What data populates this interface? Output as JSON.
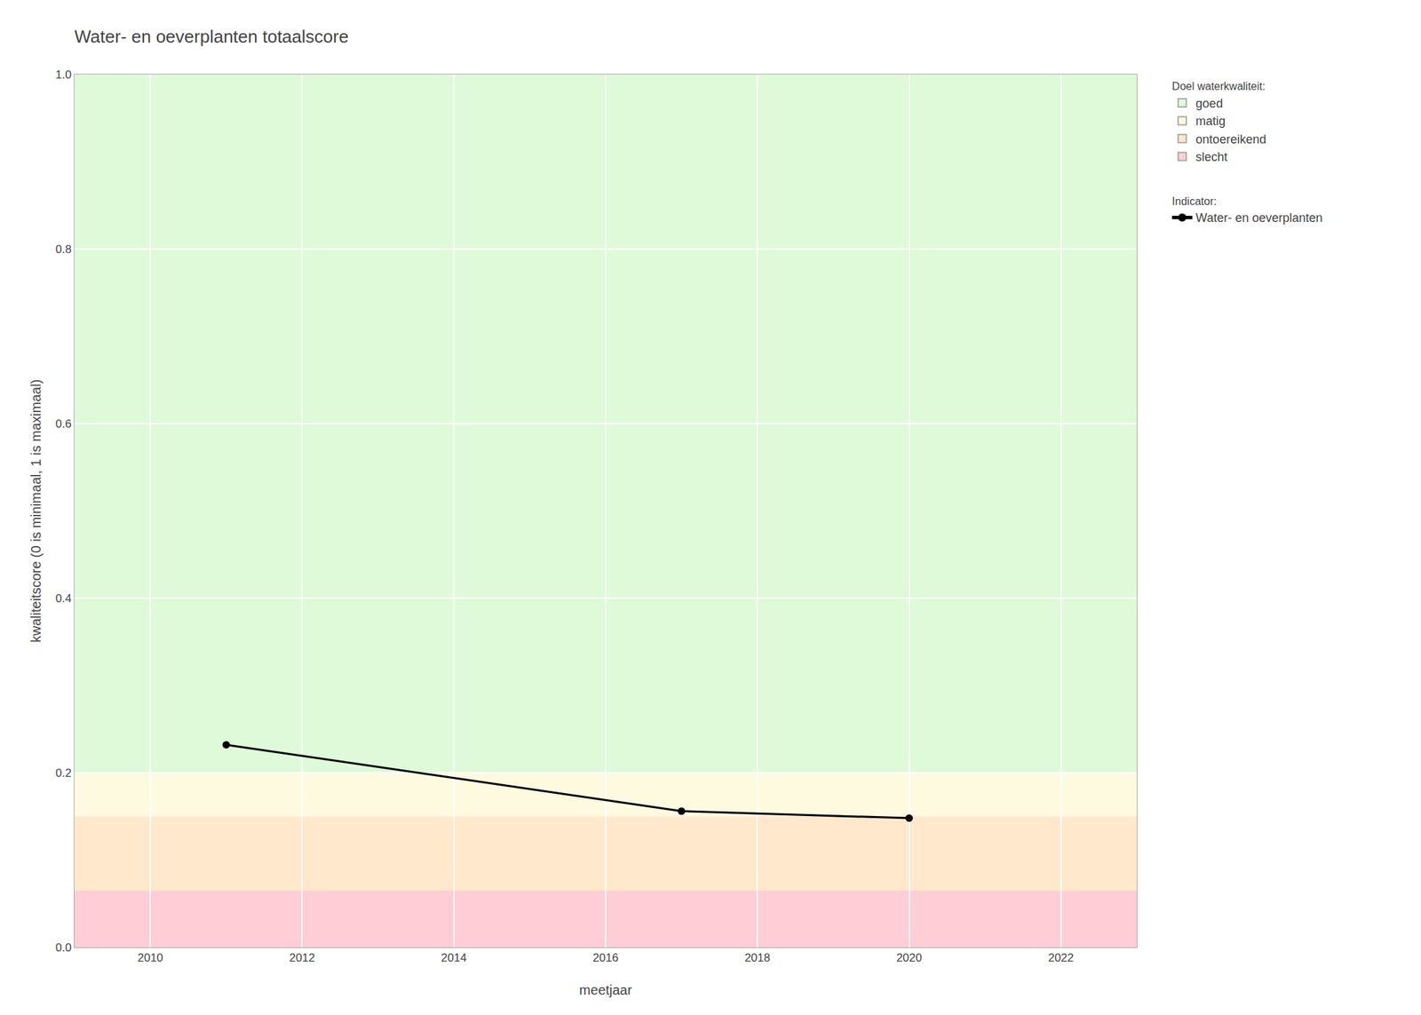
{
  "chart_data": {
    "type": "line",
    "title": "Water- en oeverplanten totaalscore",
    "xlabel": "meetjaar",
    "ylabel": "kwaliteitscore (0 is minimaal, 1 is maximaal)",
    "x": [
      2011,
      2017,
      2020
    ],
    "series": [
      {
        "name": "Water- en oeverplanten",
        "color": "#000000",
        "marker": "circle",
        "line_style": "solid",
        "values": [
          0.232,
          0.156,
          0.148
        ]
      }
    ],
    "series_legend_title": "Indicator:",
    "bands_legend_title": "Doel waterkwaliteit:",
    "bands": [
      {
        "ymin": 0.2,
        "ymax": 1.0,
        "color": "#DFFAD8",
        "label": "goed"
      },
      {
        "ymin": 0.15,
        "ymax": 0.2,
        "color": "#FEFAE0",
        "label": "matig"
      },
      {
        "ymin": 0.065,
        "ymax": 0.15,
        "color": "#FFE8CC",
        "label": "ontoereikend"
      },
      {
        "ymin": 0.0,
        "ymax": 0.065,
        "color": "#FFCDD5",
        "label": "slecht"
      }
    ],
    "xlim": [
      2009,
      2023
    ],
    "xticks": [
      2010,
      2012,
      2014,
      2016,
      2018,
      2020,
      2022
    ],
    "ylim": [
      0.0,
      1.0
    ],
    "yticks": [
      {
        "value": 0.0,
        "label": "0.0"
      },
      0.2,
      0.4,
      0.6,
      0.8,
      {
        "value": 1.0,
        "label": "1.0"
      }
    ],
    "grid": true,
    "legend": "right"
  }
}
